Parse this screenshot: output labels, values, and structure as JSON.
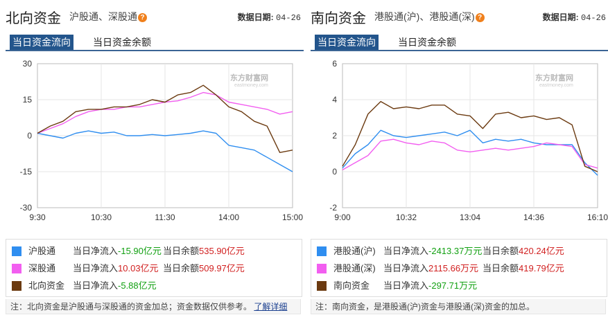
{
  "north": {
    "title": "北向资金",
    "subtitle": "沪股通、深股通",
    "date_label": "数据日期:",
    "date_value": "04-26",
    "tabs": [
      "当日资金流向",
      "当日资金余额"
    ],
    "watermark": "东方财富网",
    "watermark_sub": "eastmoney.com",
    "legend": [
      {
        "name": "沪股通",
        "flow_label": "当日净流入",
        "flow_value": "-15.90亿元",
        "bal_label": "当日余额",
        "bal_value": "535.90亿元",
        "color": "#2f8ef0"
      },
      {
        "name": "深股通",
        "flow_label": "当日净流入",
        "flow_value": "10.03亿元",
        "bal_label": "当日余额",
        "bal_value": "509.97亿元",
        "color": "#f25ef0"
      },
      {
        "name": "北向资金",
        "flow_label": "当日净流入",
        "flow_value": "-5.88亿元",
        "color": "#6b3a10"
      }
    ],
    "note": "注：北向资金是沪股通与深股通的资金加总；资金数据仅供参考。",
    "note_link": "了解详细"
  },
  "south": {
    "title": "南向资金",
    "subtitle": "港股通(沪)、港股通(深)",
    "date_label": "数据日期:",
    "date_value": "04-26",
    "tabs": [
      "当日资金流向",
      "当日资金余额"
    ],
    "watermark": "东方财富网",
    "watermark_sub": "eastmoney.com",
    "legend": [
      {
        "name": "港股通(沪)",
        "flow_label": "当日净流入",
        "flow_value": "-2413.37万元",
        "bal_label": "当日余额",
        "bal_value": "420.24亿元",
        "color": "#2f8ef0"
      },
      {
        "name": "港股通(深)",
        "flow_label": "当日净流入",
        "flow_value": "2115.66万元",
        "bal_label": "当日余额",
        "bal_value": "419.79亿元",
        "color": "#f25ef0"
      },
      {
        "name": "南向资金",
        "flow_label": "当日净流入",
        "flow_value": "-297.71万元",
        "color": "#6b3a10"
      }
    ],
    "note": "注：南向资金，是港股通(沪)资金与港股通(深)资金的加总。"
  },
  "chart_data": [
    {
      "type": "line",
      "title": "",
      "x_ticks": [
        "9:30",
        "10:30",
        "11:30",
        "14:00",
        "15:00"
      ],
      "ylim": [
        -30,
        30
      ],
      "y_ticks": [
        30,
        15,
        0,
        -15,
        -30
      ],
      "grid": true,
      "series": [
        {
          "name": "沪股通",
          "color": "#2f8ef0",
          "x": [
            0,
            0.05,
            0.1,
            0.15,
            0.2,
            0.25,
            0.3,
            0.35,
            0.4,
            0.45,
            0.5,
            0.55,
            0.6,
            0.65,
            0.7,
            0.75,
            0.8,
            0.85,
            0.9,
            0.95,
            1.0
          ],
          "values": [
            1,
            0,
            -1,
            1,
            2,
            1,
            1.5,
            0,
            0,
            0.5,
            0,
            0.5,
            1,
            2,
            1,
            -4,
            -5,
            -6,
            -9,
            -12,
            -15
          ]
        },
        {
          "name": "深股通",
          "color": "#f25ef0",
          "x": [
            0,
            0.05,
            0.1,
            0.15,
            0.2,
            0.25,
            0.3,
            0.35,
            0.4,
            0.45,
            0.5,
            0.55,
            0.6,
            0.65,
            0.7,
            0.75,
            0.8,
            0.85,
            0.9,
            0.95,
            1.0
          ],
          "values": [
            1,
            3,
            5,
            8,
            10,
            11,
            11,
            12,
            12,
            13,
            14,
            14.5,
            16,
            18,
            17,
            14,
            13,
            12,
            11,
            9,
            10
          ]
        },
        {
          "name": "北向资金",
          "color": "#6b3a10",
          "x": [
            0,
            0.05,
            0.1,
            0.15,
            0.2,
            0.25,
            0.3,
            0.35,
            0.4,
            0.45,
            0.5,
            0.55,
            0.6,
            0.65,
            0.7,
            0.75,
            0.8,
            0.85,
            0.9,
            0.95,
            1.0
          ],
          "values": [
            1,
            4,
            6,
            10,
            11,
            11,
            12,
            12,
            13,
            15,
            14,
            17,
            18,
            21,
            17,
            12,
            10,
            6,
            4,
            -7,
            -6
          ]
        }
      ]
    },
    {
      "type": "line",
      "title": "",
      "x_ticks": [
        "9:00",
        "10:32",
        "13:04",
        "14:36",
        "16:10"
      ],
      "ylim": [
        -2,
        6
      ],
      "y_ticks": [
        6,
        4,
        2,
        0,
        -2
      ],
      "grid": true,
      "series": [
        {
          "name": "港股通(沪)",
          "color": "#2f8ef0",
          "x": [
            0,
            0.05,
            0.1,
            0.15,
            0.2,
            0.25,
            0.3,
            0.35,
            0.4,
            0.45,
            0.5,
            0.55,
            0.6,
            0.65,
            0.7,
            0.75,
            0.8,
            0.85,
            0.9,
            0.95,
            1.0
          ],
          "values": [
            0.2,
            1.0,
            1.5,
            2.3,
            2.0,
            1.9,
            2.0,
            2.1,
            2.2,
            2.0,
            2.3,
            1.6,
            1.8,
            1.7,
            1.8,
            1.6,
            1.5,
            1.5,
            1.5,
            0.5,
            -0.2
          ]
        },
        {
          "name": "港股通(深)",
          "color": "#f25ef0",
          "x": [
            0,
            0.05,
            0.1,
            0.15,
            0.2,
            0.25,
            0.3,
            0.35,
            0.4,
            0.45,
            0.5,
            0.55,
            0.6,
            0.65,
            0.7,
            0.75,
            0.8,
            0.85,
            0.9,
            0.95,
            1.0
          ],
          "values": [
            0.1,
            0.5,
            0.9,
            1.7,
            1.8,
            1.6,
            1.5,
            1.7,
            1.6,
            1.2,
            1.1,
            1.2,
            1.3,
            1.2,
            1.3,
            1.4,
            1.6,
            1.5,
            1.4,
            0.4,
            0.2
          ]
        },
        {
          "name": "南向资金",
          "color": "#6b3a10",
          "x": [
            0,
            0.05,
            0.1,
            0.15,
            0.2,
            0.25,
            0.3,
            0.35,
            0.4,
            0.45,
            0.5,
            0.55,
            0.6,
            0.65,
            0.7,
            0.75,
            0.8,
            0.85,
            0.9,
            0.95,
            1.0
          ],
          "values": [
            0.3,
            1.5,
            3.2,
            3.9,
            3.5,
            3.6,
            3.5,
            3.7,
            3.7,
            3.2,
            3.1,
            2.4,
            3.2,
            3.3,
            3.0,
            3.1,
            2.9,
            3.0,
            2.6,
            0.3,
            0.0
          ]
        }
      ]
    }
  ]
}
